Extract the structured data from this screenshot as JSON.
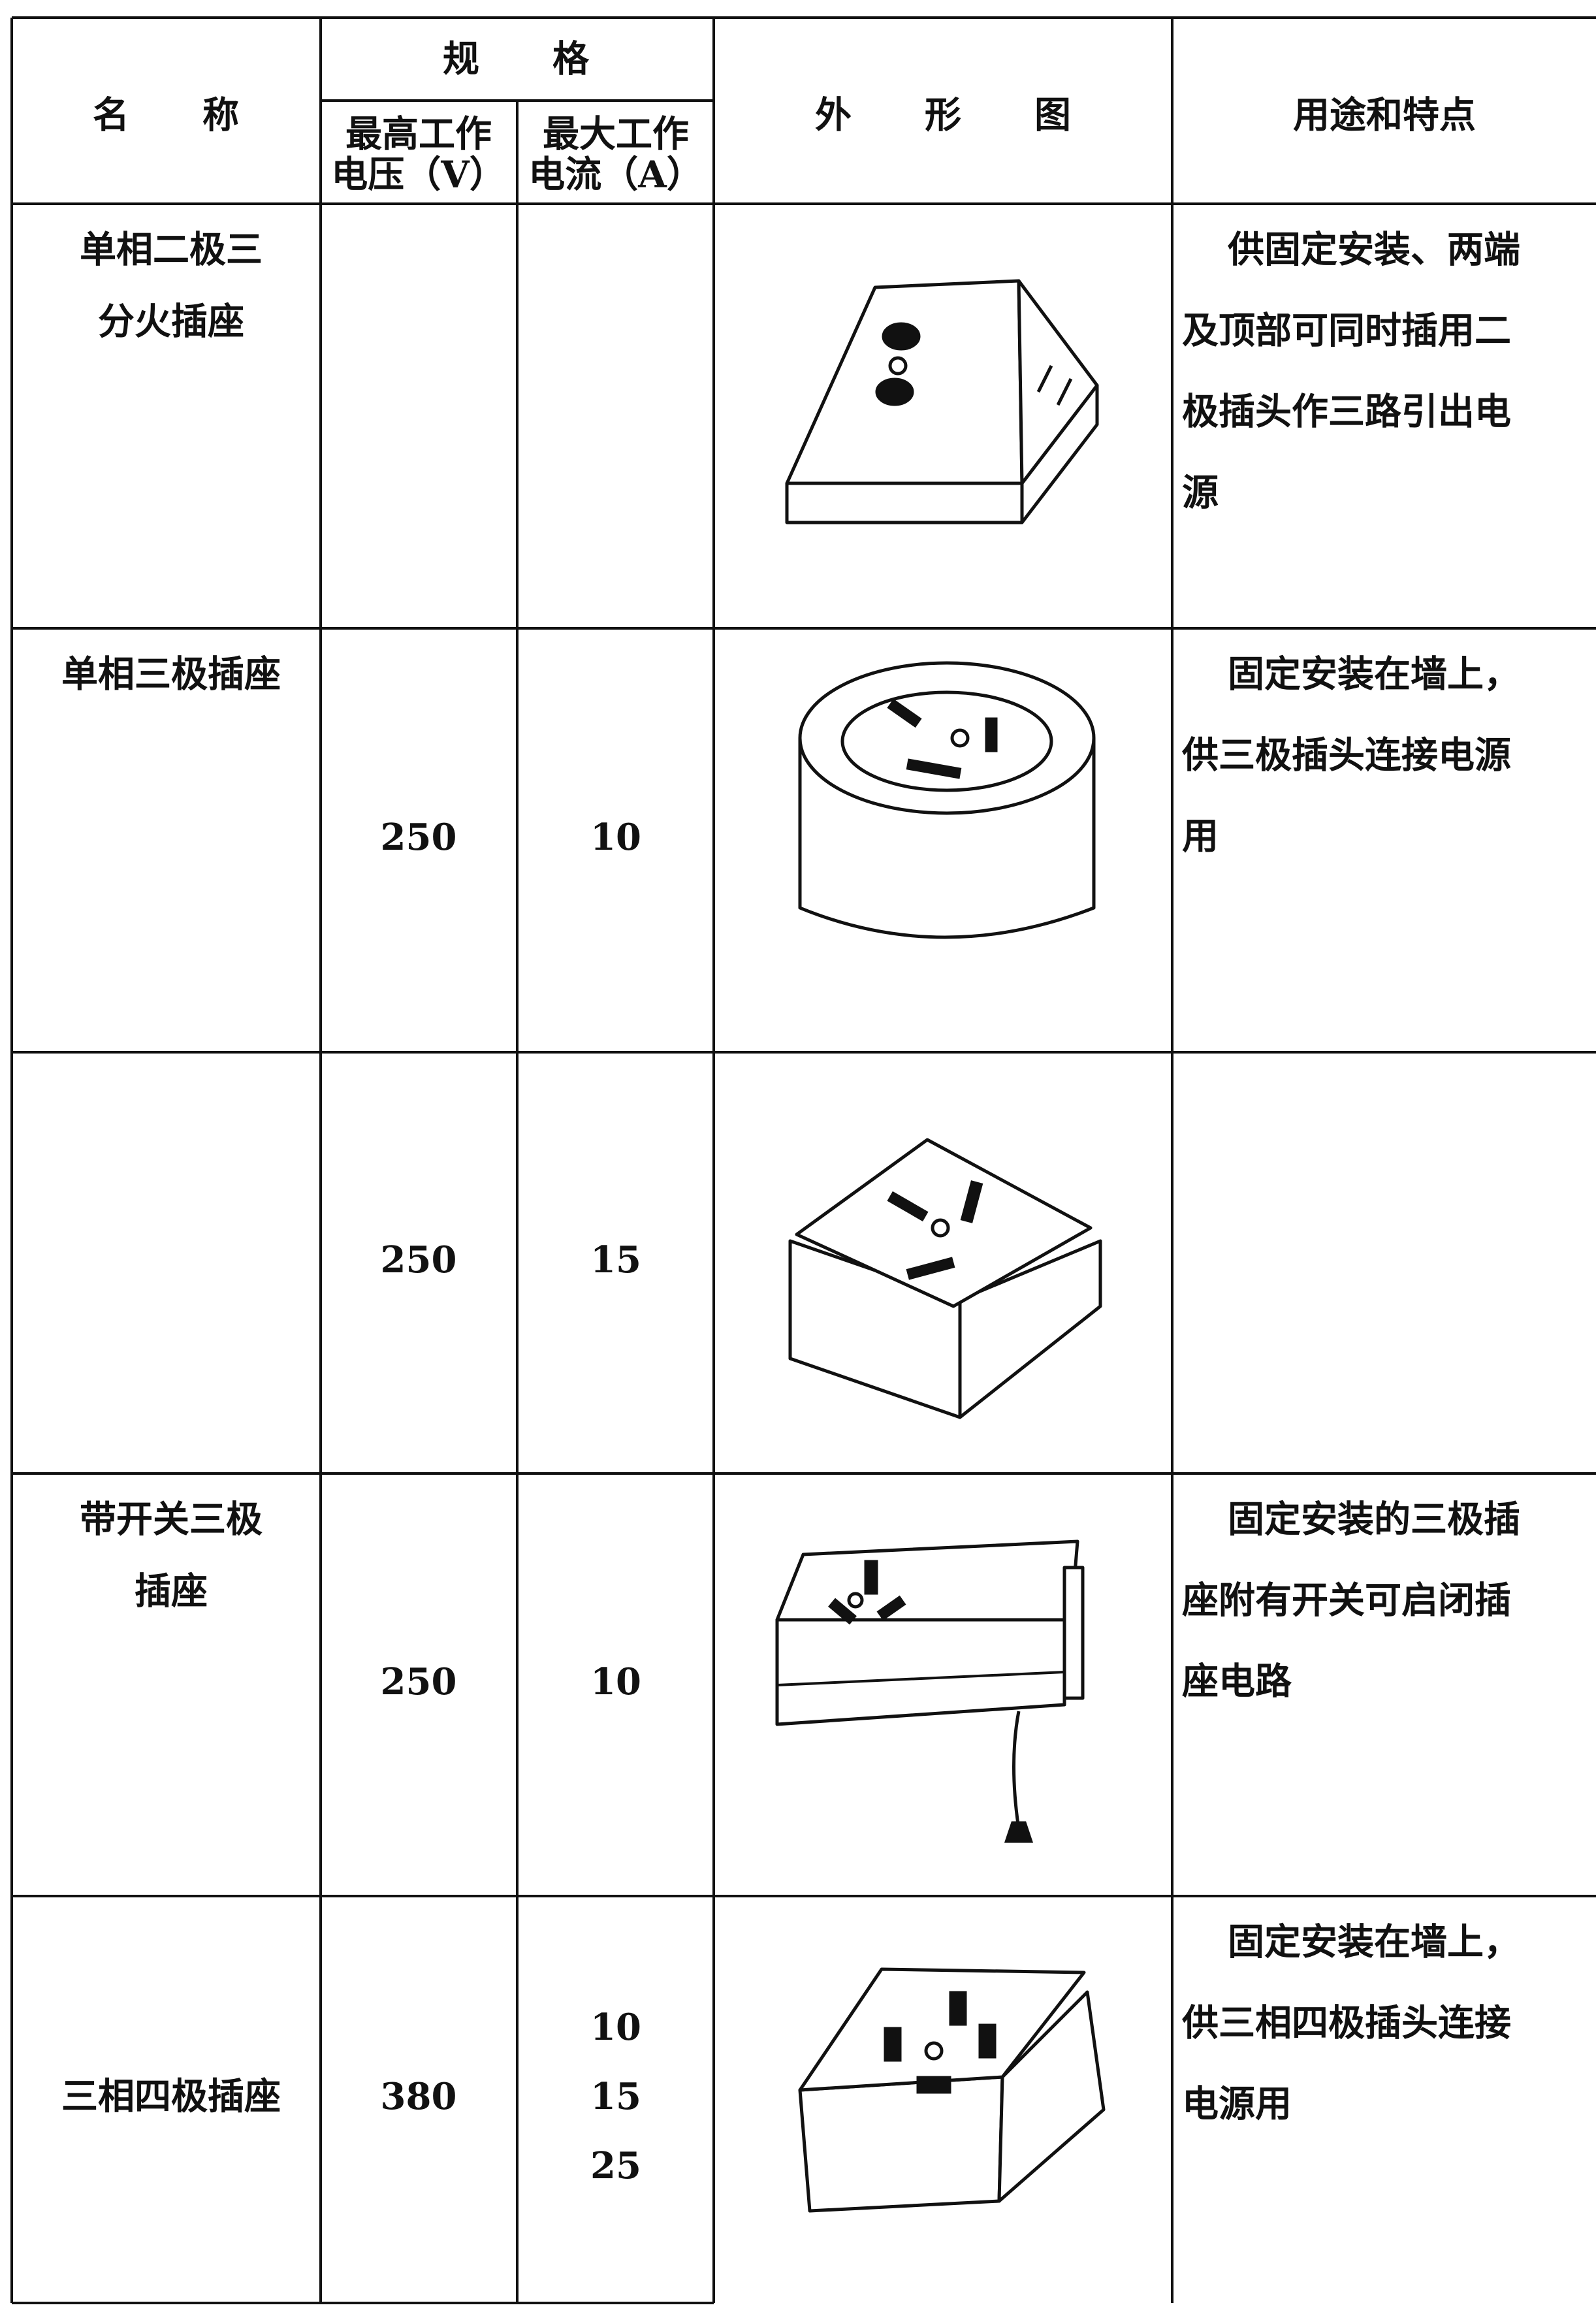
{
  "header": {
    "name": "名　　称",
    "spec": "规　　格",
    "voltage": [
      "最高工作",
      "电压（V）"
    ],
    "current": [
      "最大工作",
      "电流（A）"
    ],
    "figure": "外　　形　　图",
    "usage": "用途和特点"
  },
  "rows": [
    {
      "name": [
        "单相二极三",
        "分火插座"
      ],
      "usage": [
        "供固定安装、两端",
        "及顶部可同时插用二",
        "极插头作三路引出电",
        "源"
      ]
    },
    {
      "name": [
        "单相三极插座"
      ],
      "voltage": "250",
      "current": [
        "10"
      ],
      "usage": [
        "固定安装在墙上，",
        "供三极插头连接电源",
        "用"
      ]
    },
    {
      "voltage": "250",
      "current": [
        "15"
      ]
    },
    {
      "name": [
        "带开关三极",
        "插座"
      ],
      "voltage": "250",
      "current": [
        "10"
      ],
      "usage": [
        "固定安装的三极插",
        "座附有开关可启闭插",
        "座电路"
      ]
    },
    {
      "name": [
        "三相四极插座"
      ],
      "voltage": "380",
      "current": [
        "10",
        "15",
        "25"
      ],
      "usage": [
        "固定安装在墙上，",
        "供三相四极插头连接",
        "电源用"
      ]
    }
  ]
}
